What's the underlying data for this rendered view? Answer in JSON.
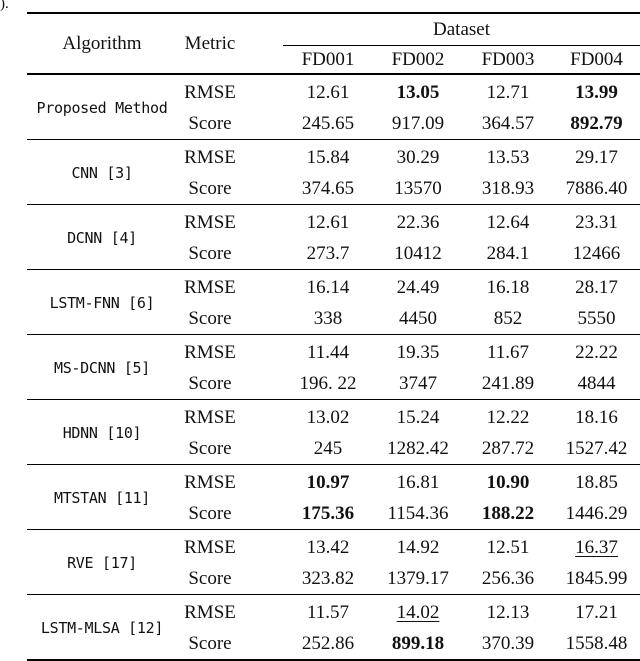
{
  "page": {
    "caption_fragment": ")."
  },
  "table": {
    "header": {
      "algorithm": "Algorithm",
      "metric": "Metric",
      "dataset_group": "Dataset",
      "datasets": [
        "FD001",
        "FD002",
        "FD003",
        "FD004"
      ]
    },
    "metric_labels": [
      "RMSE",
      "Score"
    ],
    "rows": [
      {
        "algorithm": "Proposed Method",
        "rmse": [
          {
            "v": "12.61",
            "style": "normal"
          },
          {
            "v": "13.05",
            "style": "bold"
          },
          {
            "v": "12.71",
            "style": "normal"
          },
          {
            "v": "13.99",
            "style": "bold"
          }
        ],
        "score": [
          {
            "v": "245.65",
            "style": "normal"
          },
          {
            "v": "917.09",
            "style": "normal"
          },
          {
            "v": "364.57",
            "style": "normal"
          },
          {
            "v": "892.79",
            "style": "bold"
          }
        ]
      },
      {
        "algorithm": "CNN [3]",
        "rmse": [
          {
            "v": "15.84",
            "style": "normal"
          },
          {
            "v": "30.29",
            "style": "normal"
          },
          {
            "v": "13.53",
            "style": "normal"
          },
          {
            "v": "29.17",
            "style": "normal"
          }
        ],
        "score": [
          {
            "v": "374.65",
            "style": "normal"
          },
          {
            "v": "13570",
            "style": "normal"
          },
          {
            "v": "318.93",
            "style": "normal"
          },
          {
            "v": "7886.40",
            "style": "normal"
          }
        ]
      },
      {
        "algorithm": "DCNN [4]",
        "rmse": [
          {
            "v": "12.61",
            "style": "normal"
          },
          {
            "v": "22.36",
            "style": "normal"
          },
          {
            "v": "12.64",
            "style": "normal"
          },
          {
            "v": "23.31",
            "style": "normal"
          }
        ],
        "score": [
          {
            "v": "273.7",
            "style": "normal"
          },
          {
            "v": "10412",
            "style": "normal"
          },
          {
            "v": "284.1",
            "style": "normal"
          },
          {
            "v": "12466",
            "style": "normal"
          }
        ]
      },
      {
        "algorithm": "LSTM-FNN [6]",
        "rmse": [
          {
            "v": "16.14",
            "style": "normal"
          },
          {
            "v": "24.49",
            "style": "normal"
          },
          {
            "v": "16.18",
            "style": "normal"
          },
          {
            "v": "28.17",
            "style": "normal"
          }
        ],
        "score": [
          {
            "v": "338",
            "style": "normal"
          },
          {
            "v": "4450",
            "style": "normal"
          },
          {
            "v": "852",
            "style": "normal"
          },
          {
            "v": "5550",
            "style": "normal"
          }
        ]
      },
      {
        "algorithm": "MS-DCNN [5]",
        "rmse": [
          {
            "v": "11.44",
            "style": "normal"
          },
          {
            "v": "19.35",
            "style": "normal"
          },
          {
            "v": "11.67",
            "style": "normal"
          },
          {
            "v": "22.22",
            "style": "normal"
          }
        ],
        "score": [
          {
            "v": "196. 22",
            "style": "normal"
          },
          {
            "v": "3747",
            "style": "normal"
          },
          {
            "v": "241.89",
            "style": "normal"
          },
          {
            "v": "4844",
            "style": "normal"
          }
        ]
      },
      {
        "algorithm": "HDNN [10]",
        "rmse": [
          {
            "v": "13.02",
            "style": "normal"
          },
          {
            "v": "15.24",
            "style": "normal"
          },
          {
            "v": "12.22",
            "style": "normal"
          },
          {
            "v": "18.16",
            "style": "normal"
          }
        ],
        "score": [
          {
            "v": "245",
            "style": "normal"
          },
          {
            "v": "1282.42",
            "style": "normal"
          },
          {
            "v": "287.72",
            "style": "normal"
          },
          {
            "v": "1527.42",
            "style": "normal"
          }
        ]
      },
      {
        "algorithm": "MTSTAN [11]",
        "rmse": [
          {
            "v": "10.97",
            "style": "bold"
          },
          {
            "v": "16.81",
            "style": "normal"
          },
          {
            "v": "10.90",
            "style": "bold"
          },
          {
            "v": "18.85",
            "style": "normal"
          }
        ],
        "score": [
          {
            "v": "175.36",
            "style": "bold"
          },
          {
            "v": "1154.36",
            "style": "normal"
          },
          {
            "v": "188.22",
            "style": "bold"
          },
          {
            "v": "1446.29",
            "style": "normal"
          }
        ]
      },
      {
        "algorithm": "RVE [17]",
        "rmse": [
          {
            "v": "13.42",
            "style": "normal"
          },
          {
            "v": "14.92",
            "style": "normal"
          },
          {
            "v": "12.51",
            "style": "normal"
          },
          {
            "v": "16.37",
            "style": "underline"
          }
        ],
        "score": [
          {
            "v": "323.82",
            "style": "normal"
          },
          {
            "v": "1379.17",
            "style": "normal"
          },
          {
            "v": "256.36",
            "style": "normal"
          },
          {
            "v": "1845.99",
            "style": "normal"
          }
        ]
      },
      {
        "algorithm": "LSTM-MLSA [12]",
        "rmse": [
          {
            "v": "11.57",
            "style": "normal"
          },
          {
            "v": "14.02",
            "style": "underline"
          },
          {
            "v": "12.13",
            "style": "normal"
          },
          {
            "v": "17.21",
            "style": "normal"
          }
        ],
        "score": [
          {
            "v": "252.86",
            "style": "normal"
          },
          {
            "v": "899.18",
            "style": "bold"
          },
          {
            "v": "370.39",
            "style": "normal"
          },
          {
            "v": "1558.48",
            "style": "normal"
          }
        ]
      }
    ]
  }
}
